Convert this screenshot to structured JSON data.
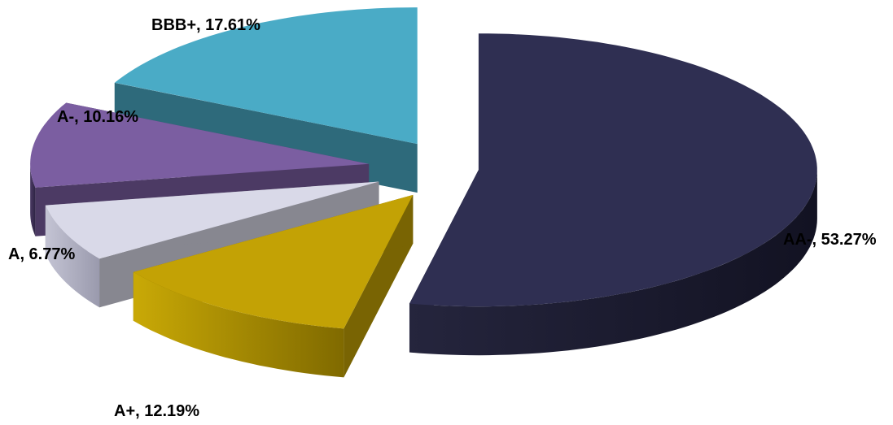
{
  "chart_data": {
    "type": "pie",
    "title": "",
    "slices": [
      {
        "label": "AA-, 53.27%",
        "category": "AA-",
        "value": 53.27,
        "color": "#2f2f52"
      },
      {
        "label": "A+, 12.19%",
        "category": "A+",
        "value": 12.19,
        "color": "#c3a205"
      },
      {
        "label": "A, 6.77%",
        "category": "A",
        "value": 6.77,
        "color": "#d9d9e8"
      },
      {
        "label": "A-, 10.16%",
        "category": "A-",
        "value": 10.16,
        "color": "#7b5ea1"
      },
      {
        "label": "BBB+, 17.61%",
        "category": "BBB+",
        "value": 17.61,
        "color": "#4aabc6"
      }
    ],
    "legend": "none",
    "style": "3d-exploded"
  }
}
